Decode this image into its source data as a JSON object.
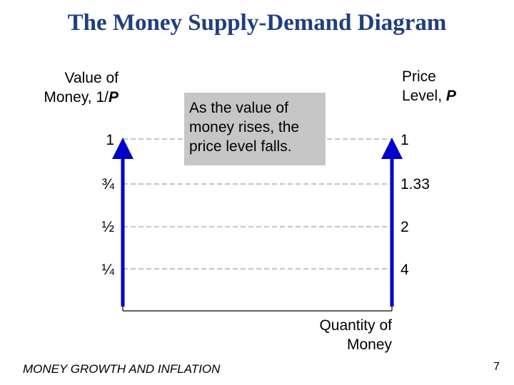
{
  "title": "The Money Supply-Demand Diagram",
  "left_axis": {
    "line1": "Value of",
    "line2_text": "Money, 1/",
    "line2_var": "P"
  },
  "right_axis": {
    "line1": "Price",
    "line2_text": "Level, ",
    "line2_var": "P"
  },
  "callout": {
    "line1": "As the value of",
    "line2": "money rises, the",
    "line3": "price level falls."
  },
  "x_axis": {
    "line1": "Quantity of",
    "line2": "Money"
  },
  "rows": [
    {
      "value_label": "1",
      "price_label": "1"
    },
    {
      "value_label": "¾",
      "price_label": "1.33"
    },
    {
      "value_label": "½",
      "price_label": "2"
    },
    {
      "value_label": "¼",
      "price_label": "4"
    }
  ],
  "footer": "MONEY GROWTH AND INFLATION",
  "page_number": "7",
  "colors": {
    "title": "#1f3f7f",
    "arrow": "#0000cc",
    "callout_bg": "#c6c6c6",
    "dash": "#888888"
  }
}
